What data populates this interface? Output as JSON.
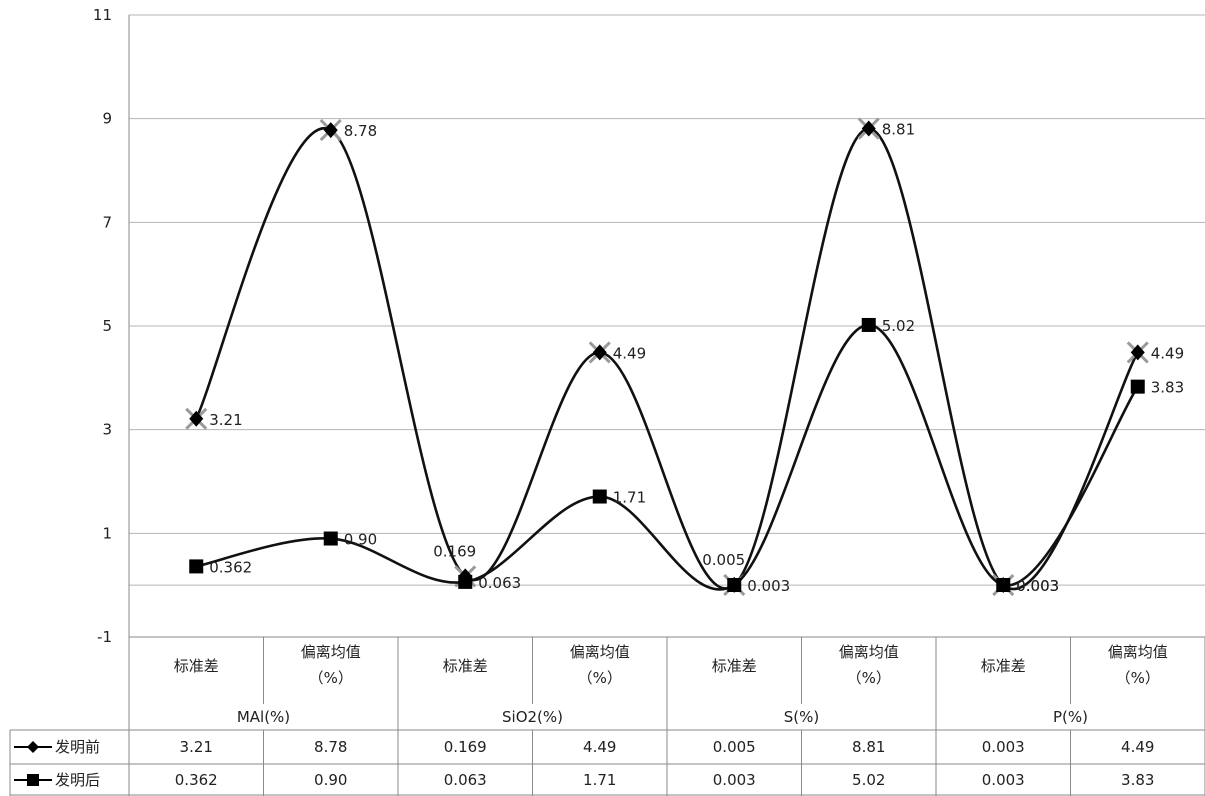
{
  "chart_data": {
    "type": "line",
    "smooth": true,
    "grid": "horizontal",
    "ylim": [
      -1,
      11
    ],
    "yticks": [
      "-1",
      "1",
      "3",
      "5",
      "7",
      "9",
      "11"
    ],
    "groups": [
      {
        "name": "MAl(%)",
        "sub": [
          "标准差",
          "偏离均值\n（%）"
        ]
      },
      {
        "name": "SiO2(%)",
        "sub": [
          "标准差",
          "偏离均值\n（%）"
        ]
      },
      {
        "name": "S(%)",
        "sub": [
          "标准差",
          "偏离均值\n（%）"
        ]
      },
      {
        "name": "P(%)",
        "sub": [
          "标准差",
          "偏离均值\n（%）"
        ]
      }
    ],
    "series": [
      {
        "name": "发明前",
        "marker": "diamond",
        "values": [
          3.21,
          8.78,
          0.169,
          4.49,
          0.005,
          8.81,
          0.003,
          4.49
        ],
        "labels": [
          "3.21",
          "8.78",
          "0.169",
          "4.49",
          "0.005",
          "8.81",
          "0.003",
          "4.49"
        ]
      },
      {
        "name": "发明后",
        "marker": "square",
        "values": [
          0.362,
          0.9,
          0.063,
          1.71,
          0.003,
          5.02,
          0.003,
          3.83
        ],
        "labels": [
          "0.362",
          "0.90",
          "0.063",
          "1.71",
          "0.003",
          "5.02",
          "0.003",
          "3.83"
        ]
      }
    ]
  }
}
